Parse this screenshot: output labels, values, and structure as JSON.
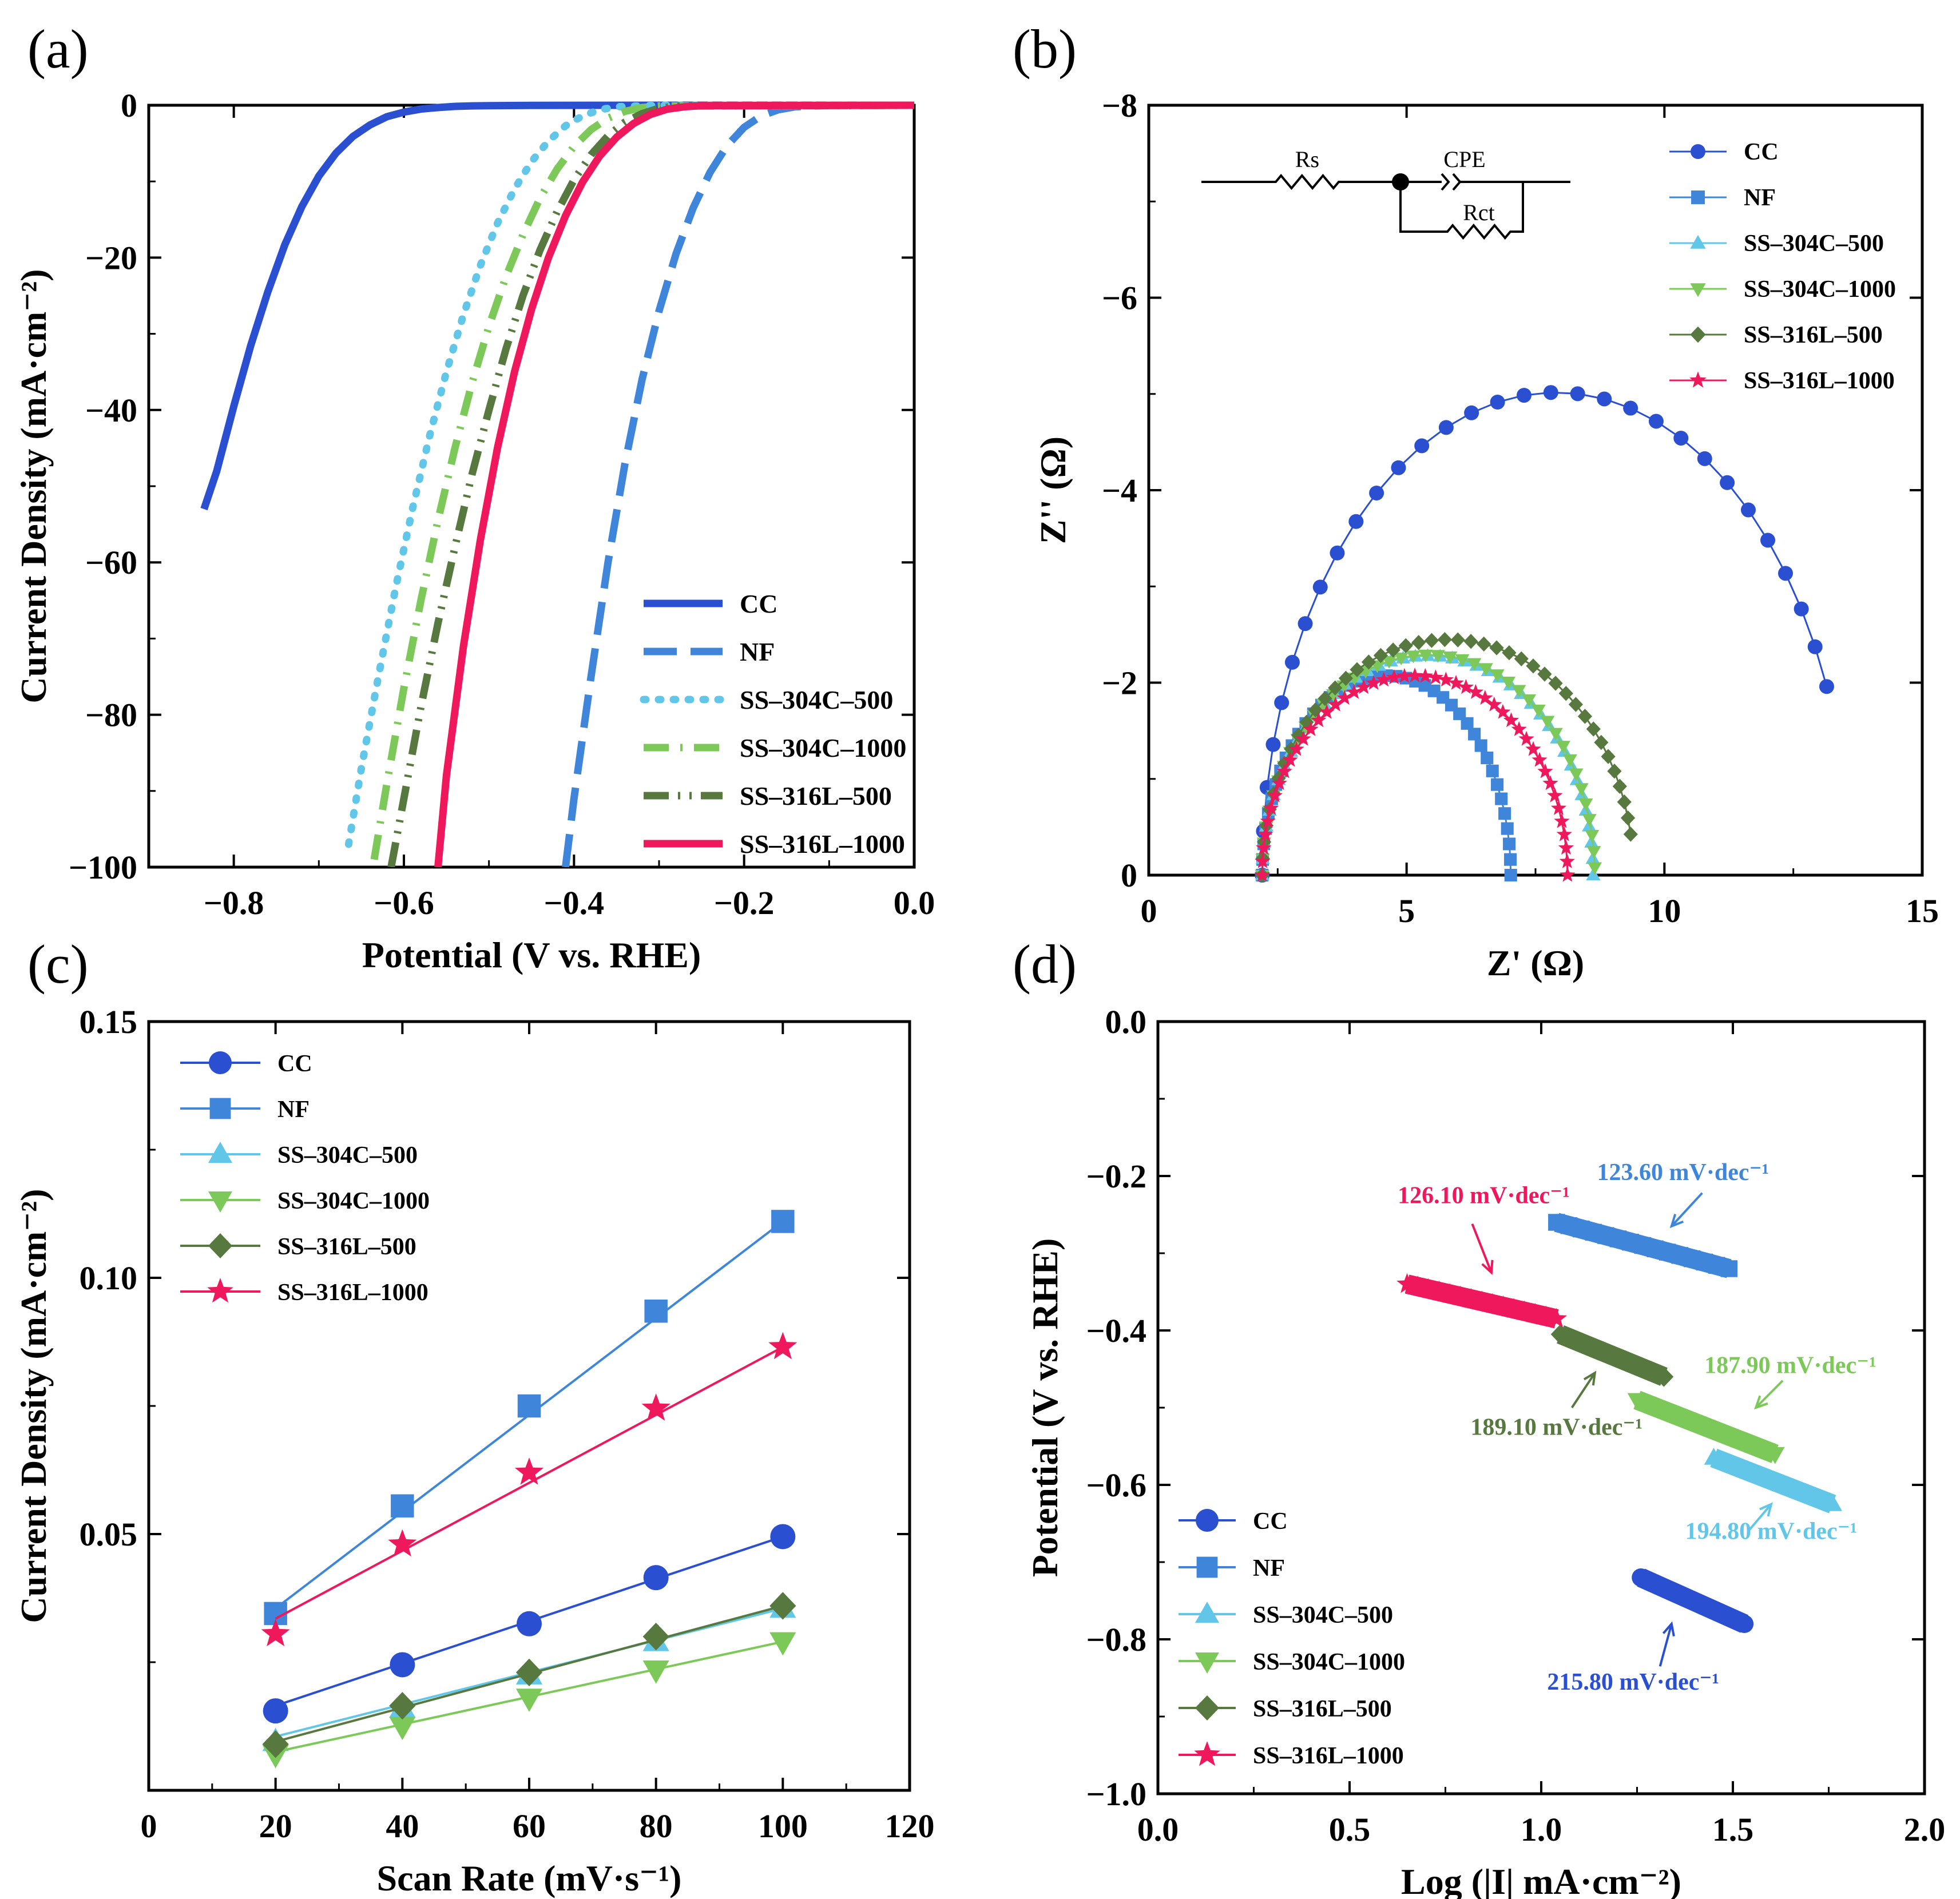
{
  "colors": {
    "CC": "#2a4fd1",
    "NF": "#3f86da",
    "SS-304C-500": "#62c6e8",
    "SS-304C-1000": "#7cc95a",
    "SS-316L-500": "#57793f",
    "SS-316L-1000": "#f0185c"
  },
  "chart_data": [
    {
      "id": "a",
      "panel_label": "(a)",
      "type": "line",
      "xlabel": "Potential (V vs. RHE)",
      "ylabel": "Current Density (mA·cm⁻²)",
      "xlim": [
        -0.9,
        0.0
      ],
      "ylim": [
        -100,
        0
      ],
      "xticks": [
        -0.8,
        -0.6,
        -0.4,
        -0.2,
        0.0
      ],
      "xtick_labels": [
        "−0.8",
        "−0.6",
        "−0.4",
        "−0.2",
        "0.0"
      ],
      "yticks": [
        0,
        -20,
        -40,
        -60,
        -80,
        -100
      ],
      "ytick_labels": [
        "0",
        "−20",
        "−40",
        "−60",
        "−80",
        "−100"
      ],
      "series": [
        {
          "name": "CC",
          "label": "CC",
          "style": "solid",
          "x": [
            -0.835,
            -0.82,
            -0.8,
            -0.78,
            -0.76,
            -0.74,
            -0.72,
            -0.7,
            -0.68,
            -0.66,
            -0.64,
            -0.62,
            -0.6,
            -0.58,
            -0.56,
            -0.54,
            -0.52,
            -0.5,
            -0.45,
            -0.3,
            0.0
          ],
          "y": [
            -53,
            -48,
            -39.5,
            -31.5,
            -24.5,
            -18.3,
            -13.3,
            -9.3,
            -6.3,
            -4.1,
            -2.6,
            -1.5,
            -0.9,
            -0.5,
            -0.3,
            -0.15,
            -0.08,
            -0.05,
            -0.02,
            0,
            0
          ]
        },
        {
          "name": "NF",
          "label": "NF",
          "style": "dash",
          "x": [
            -0.41,
            -0.4,
            -0.38,
            -0.36,
            -0.34,
            -0.32,
            -0.3,
            -0.28,
            -0.26,
            -0.24,
            -0.22,
            -0.2,
            -0.18,
            -0.16,
            -0.14,
            -0.1,
            0.0
          ],
          "y": [
            -100,
            -91,
            -75,
            -60,
            -47,
            -36,
            -27,
            -19.5,
            -13.5,
            -8.8,
            -5.3,
            -2.9,
            -1.4,
            -0.6,
            -0.2,
            0,
            0
          ]
        },
        {
          "name": "SS-304C-500",
          "label": "SS‒304C‒500",
          "style": "dot",
          "x": [
            -0.665,
            -0.65,
            -0.63,
            -0.61,
            -0.59,
            -0.57,
            -0.55,
            -0.53,
            -0.51,
            -0.49,
            -0.47,
            -0.45,
            -0.43,
            -0.41,
            -0.39,
            -0.37,
            -0.35,
            -0.3,
            0.0
          ],
          "y": [
            -97,
            -87,
            -75,
            -63.5,
            -53,
            -43.5,
            -35,
            -27.5,
            -21,
            -15.5,
            -11,
            -7.4,
            -4.7,
            -2.7,
            -1.4,
            -0.6,
            -0.2,
            0,
            0
          ]
        },
        {
          "name": "SS-304C-1000",
          "label": "SS‒304C‒1000",
          "style": "dashdot",
          "x": [
            -0.635,
            -0.62,
            -0.6,
            -0.58,
            -0.56,
            -0.54,
            -0.52,
            -0.5,
            -0.48,
            -0.46,
            -0.44,
            -0.42,
            -0.4,
            -0.38,
            -0.36,
            -0.34,
            -0.32,
            -0.3,
            0.0
          ],
          "y": [
            -99,
            -89,
            -76.5,
            -65,
            -54.5,
            -45,
            -36.5,
            -29,
            -22.5,
            -17,
            -12.2,
            -8.4,
            -5.4,
            -3.2,
            -1.7,
            -0.8,
            -0.3,
            -0.1,
            0
          ]
        },
        {
          "name": "SS-316L-500",
          "label": "SS‒316L‒500",
          "style": "dashdotdot",
          "x": [
            -0.615,
            -0.6,
            -0.58,
            -0.56,
            -0.54,
            -0.52,
            -0.5,
            -0.48,
            -0.46,
            -0.44,
            -0.42,
            -0.4,
            -0.38,
            -0.36,
            -0.34,
            -0.32,
            -0.3,
            -0.28,
            0.0
          ],
          "y": [
            -100,
            -91,
            -79,
            -68,
            -58,
            -48.5,
            -40,
            -32,
            -25,
            -19,
            -14,
            -9.8,
            -6.5,
            -4,
            -2.2,
            -1.1,
            -0.4,
            -0.1,
            0
          ]
        },
        {
          "name": "SS-316L-1000",
          "label": "SS‒316L‒1000",
          "style": "solid",
          "x": [
            -0.56,
            -0.55,
            -0.53,
            -0.51,
            -0.49,
            -0.47,
            -0.45,
            -0.43,
            -0.41,
            -0.39,
            -0.37,
            -0.35,
            -0.33,
            -0.31,
            -0.29,
            -0.27,
            -0.25,
            0.0
          ],
          "y": [
            -100,
            -88,
            -71,
            -57,
            -45,
            -35,
            -26.8,
            -20,
            -14.5,
            -10.1,
            -6.7,
            -4.2,
            -2.4,
            -1.2,
            -0.5,
            -0.2,
            -0.05,
            0
          ]
        }
      ]
    },
    {
      "id": "b",
      "panel_label": "(b)",
      "type": "scatter",
      "xlabel": "Z' (Ω)",
      "ylabel": "Z'' (Ω)",
      "xlim": [
        0,
        15
      ],
      "ylim": [
        0,
        -8
      ],
      "xticks": [
        0,
        5,
        10,
        15
      ],
      "xtick_labels": [
        "0",
        "5",
        "10",
        "15"
      ],
      "yticks": [
        0,
        -2,
        -4,
        -6,
        -8
      ],
      "ytick_labels": [
        "0",
        "−2",
        "−4",
        "−6",
        "−8"
      ],
      "circuit_labels": {
        "rs": "Rs",
        "cpe": "CPE",
        "rct": "Rct"
      },
      "series": [
        {
          "name": "CC",
          "label": "CC",
          "marker": "circle",
          "rs": 2.2,
          "rct": 11.4,
          "depression": 0.88,
          "end_angle": 157,
          "n_points": 30
        },
        {
          "name": "NF",
          "label": "NF",
          "marker": "square",
          "rs": 2.2,
          "rct": 4.82,
          "depression": 0.86,
          "end_angle": 180,
          "n_points": 40
        },
        {
          "name": "SS-304C-500",
          "label": "SS‒304C‒500",
          "marker": "triangle-up",
          "rs": 2.2,
          "rct": 6.42,
          "depression": 0.71,
          "end_angle": 180,
          "n_points": 42
        },
        {
          "name": "SS-304C-1000",
          "label": "SS‒304C‒1000",
          "marker": "triangle-down",
          "rs": 2.2,
          "rct": 6.45,
          "depression": 0.71,
          "end_angle": 178,
          "n_points": 42
        },
        {
          "name": "SS-316L-500",
          "label": "SS‒316L‒500",
          "marker": "diamond",
          "rs": 2.2,
          "rct": 7.2,
          "depression": 0.68,
          "end_angle": 170,
          "n_points": 42
        },
        {
          "name": "SS-316L-1000",
          "label": "SS‒316L‒1000",
          "marker": "star",
          "rs": 2.2,
          "rct": 5.92,
          "depression": 0.7,
          "end_angle": 180,
          "n_points": 46
        }
      ]
    },
    {
      "id": "c",
      "panel_label": "(c)",
      "type": "line",
      "xlabel": "Scan Rate (mV·s⁻¹)",
      "ylabel": "Current Density (mA·cm⁻²)",
      "xlim": [
        0,
        120
      ],
      "ylim": [
        0.0,
        0.15
      ],
      "xticks": [
        0,
        20,
        40,
        60,
        80,
        100,
        120
      ],
      "xtick_labels": [
        "0",
        "20",
        "40",
        "60",
        "80",
        "100",
        "120"
      ],
      "yticks": [
        0.05,
        0.1,
        0.15
      ],
      "ytick_labels": [
        "0.05",
        "0.10",
        "0.15"
      ],
      "x": [
        20,
        40,
        60,
        80,
        100
      ],
      "series": [
        {
          "name": "CC",
          "label": "CC",
          "marker": "circle",
          "values": [
            0.0155,
            0.0245,
            0.0325,
            0.0415,
            0.0495
          ],
          "fit": [
            0.0165,
            0.0495
          ]
        },
        {
          "name": "NF",
          "label": "NF",
          "marker": "square",
          "values": [
            0.0345,
            0.0555,
            0.075,
            0.0935,
            0.111
          ],
          "fit": [
            0.0355,
            0.111
          ]
        },
        {
          "name": "SS-304C-500",
          "label": "SS‒304C‒500",
          "marker": "triangle-up",
          "values": [
            0.0095,
            0.016,
            0.0225,
            0.029,
            0.0355
          ],
          "fit": [
            0.0105,
            0.0355
          ]
        },
        {
          "name": "SS-304C-1000",
          "label": "SS‒304C‒1000",
          "marker": "triangle-down",
          "values": [
            0.007,
            0.0125,
            0.018,
            0.0235,
            0.029
          ],
          "fit": [
            0.0075,
            0.029
          ]
        },
        {
          "name": "SS-316L-500",
          "label": "SS‒316L‒500",
          "marker": "diamond",
          "values": [
            0.009,
            0.0165,
            0.023,
            0.03,
            0.036
          ],
          "fit": [
            0.0095,
            0.036
          ]
        },
        {
          "name": "SS-316L-1000",
          "label": "SS‒316L‒1000",
          "marker": "star",
          "values": [
            0.0305,
            0.048,
            0.062,
            0.0745,
            0.0865
          ],
          "fit": [
            0.0335,
            0.0865
          ]
        }
      ]
    },
    {
      "id": "d",
      "panel_label": "(d)",
      "type": "line",
      "xlabel": "Log (|I| mA·cm⁻²)",
      "ylabel": "Potential (V vs. RHE)",
      "xlim": [
        0.0,
        2.0
      ],
      "ylim": [
        -1.0,
        0.0
      ],
      "xticks": [
        0.0,
        0.5,
        1.0,
        1.5,
        2.0
      ],
      "xtick_labels": [
        "0.0",
        "0.5",
        "1.0",
        "1.5",
        "2.0"
      ],
      "yticks": [
        0.0,
        -0.2,
        -0.4,
        -0.6,
        -0.8,
        -1.0
      ],
      "ytick_labels": [
        "0.0",
        "−0.2",
        "−0.4",
        "−0.6",
        "−0.8",
        "−1.0"
      ],
      "series": [
        {
          "name": "CC",
          "label": "CC",
          "marker": "circle",
          "x": [
            1.26,
            1.53
          ],
          "y": [
            -0.72,
            -0.78
          ],
          "slope_label": "215.80 mV·dec⁻¹"
        },
        {
          "name": "NF",
          "label": "NF",
          "marker": "square",
          "x": [
            1.04,
            1.49
          ],
          "y": [
            -0.26,
            -0.32
          ],
          "slope_label": "123.60 mV·dec⁻¹"
        },
        {
          "name": "SS-304C-500",
          "label": "SS‒304C‒500",
          "marker": "triangle-up",
          "x": [
            1.45,
            1.76
          ],
          "y": [
            -0.565,
            -0.625
          ],
          "slope_label": "194.80 mV·dec⁻¹"
        },
        {
          "name": "SS-304C-1000",
          "label": "SS‒304C‒1000",
          "marker": "triangle-down",
          "x": [
            1.25,
            1.61
          ],
          "y": [
            -0.49,
            -0.56
          ],
          "slope_label": "187.90 mV·dec⁻¹"
        },
        {
          "name": "SS-316L-500",
          "label": "SS‒316L‒500",
          "marker": "diamond",
          "x": [
            1.05,
            1.32
          ],
          "y": [
            -0.405,
            -0.46
          ],
          "slope_label": "189.10 mV·dec⁻¹"
        },
        {
          "name": "SS-316L-1000",
          "label": "SS‒316L‒1000",
          "marker": "star",
          "x": [
            0.65,
            1.04
          ],
          "y": [
            -0.34,
            -0.385
          ],
          "slope_label": "126.10 mV·dec⁻¹"
        }
      ]
    }
  ]
}
